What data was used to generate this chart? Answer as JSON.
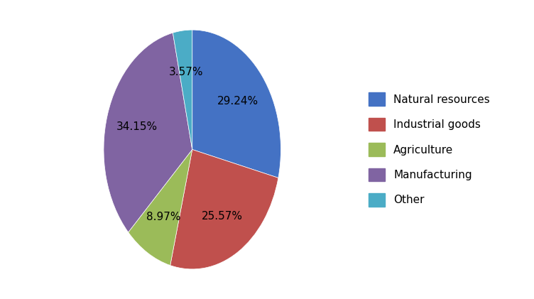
{
  "labels": [
    "Natural resources",
    "Industrial goods",
    "Agriculture",
    "Manufacturing",
    "Other"
  ],
  "values": [
    29.24,
    25.57,
    8.97,
    34.15,
    3.57
  ],
  "colors": [
    "#4472C4",
    "#C0504D",
    "#9BBB59",
    "#8064A2",
    "#4BACC6"
  ],
  "pct_labels": [
    "29.24%",
    "25.57%",
    "8.97%",
    "34.15%",
    "3.57%"
  ],
  "startangle": 90,
  "figsize": [
    7.52,
    4.21
  ],
  "dpi": 100,
  "legend_fontsize": 11,
  "autopct_fontsize": 11,
  "background_color": "#ffffff"
}
